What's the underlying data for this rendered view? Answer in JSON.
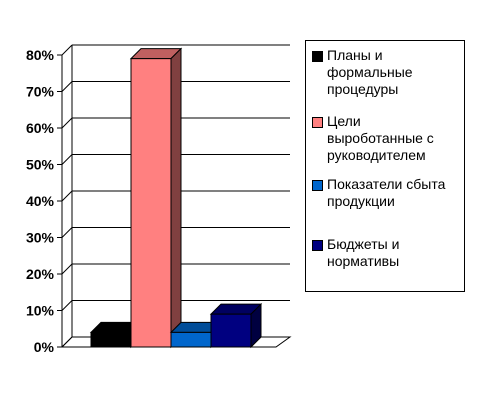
{
  "chart_data": {
    "type": "bar",
    "title": "",
    "xlabel": "",
    "ylabel": "",
    "ylim": [
      0,
      80
    ],
    "yticks": [
      "0%",
      "10%",
      "20%",
      "30%",
      "40%",
      "50%",
      "60%",
      "70%",
      "80%"
    ],
    "grid": true,
    "legend_position": "right",
    "series": [
      {
        "name": "Планы и формальные процедуры",
        "value": 4,
        "color": "#000000"
      },
      {
        "name": "Цели выроботанные с руководителем",
        "value": 79,
        "color": "#FF8080"
      },
      {
        "name": "Показатели сбыта продукции",
        "value": 4,
        "color": "#0066CC"
      },
      {
        "name": "Бюджеты и нормативы",
        "value": 9,
        "color": "#000080"
      }
    ]
  }
}
